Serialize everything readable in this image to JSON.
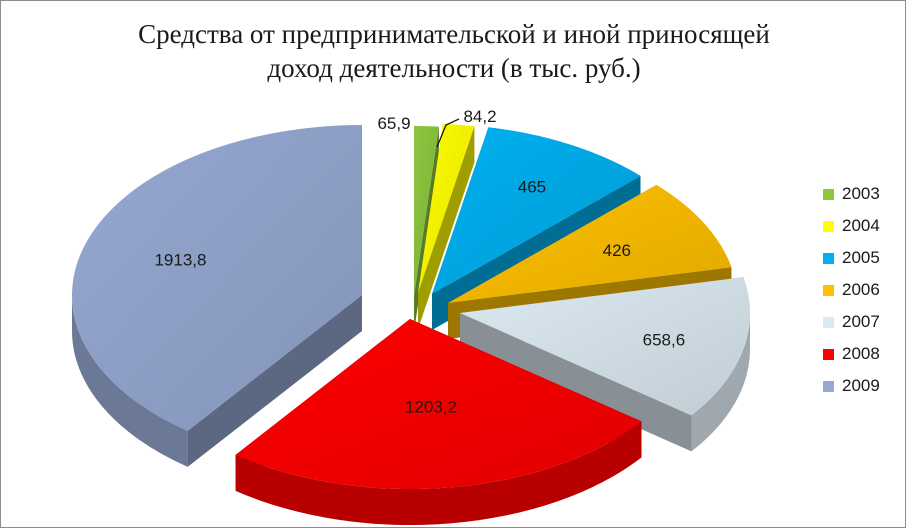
{
  "chart_data": {
    "type": "pie",
    "title_lines": [
      "Средства от предпринимательской и иной приносящей",
      "доход деятельности (в тыс. руб.)"
    ],
    "categories": [
      "2003",
      "2004",
      "2005",
      "2006",
      "2007",
      "2008",
      "2009"
    ],
    "values": [
      65.9,
      84.2,
      465,
      426,
      658.6,
      1203.2,
      1913.8
    ],
    "labels": [
      "65,9",
      "84,2",
      "465",
      "426",
      "658,6",
      "1203,2",
      "1913,8"
    ],
    "colors": [
      "#8dc63f",
      "#ffff00",
      "#00b0f0",
      "#ffc000",
      "#dbe9f1",
      "#ff0000",
      "#95a8d1"
    ],
    "style": "3d-exploded",
    "legend_position": "right"
  }
}
